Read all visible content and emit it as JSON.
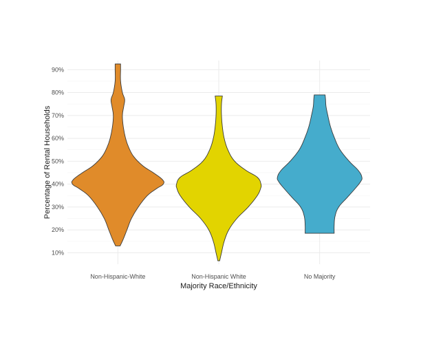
{
  "chart_data": {
    "type": "violin",
    "title": "",
    "xlabel": "Majority Race/Ethnicity",
    "ylabel": "Percentage of Rental Households",
    "ylim": [
      0.05,
      0.94
    ],
    "y_ticks": [
      0.1,
      0.2,
      0.3,
      0.4,
      0.5,
      0.6,
      0.7,
      0.8,
      0.9
    ],
    "y_tick_labels": [
      "10%",
      "20%",
      "30%",
      "40%",
      "50%",
      "60%",
      "70%",
      "80%",
      "90%"
    ],
    "grid": true,
    "legend": "none",
    "categories": [
      "Non-Hispanic-White",
      "Non-Hispanic White",
      "No Majority"
    ],
    "series": [
      {
        "category": "Non-Hispanic-White",
        "color": "#E08B2A",
        "min": 0.13,
        "max": 0.925,
        "density_profile": [
          [
            0.13,
            0.05
          ],
          [
            0.16,
            0.12
          ],
          [
            0.2,
            0.2
          ],
          [
            0.25,
            0.3
          ],
          [
            0.3,
            0.45
          ],
          [
            0.35,
            0.65
          ],
          [
            0.38,
            0.85
          ],
          [
            0.4,
            1.0
          ],
          [
            0.42,
            0.98
          ],
          [
            0.45,
            0.78
          ],
          [
            0.48,
            0.55
          ],
          [
            0.52,
            0.35
          ],
          [
            0.56,
            0.24
          ],
          [
            0.6,
            0.17
          ],
          [
            0.65,
            0.12
          ],
          [
            0.7,
            0.1
          ],
          [
            0.74,
            0.13
          ],
          [
            0.77,
            0.15
          ],
          [
            0.8,
            0.1
          ],
          [
            0.85,
            0.06
          ],
          [
            0.9,
            0.06
          ],
          [
            0.925,
            0.06
          ]
        ]
      },
      {
        "category": "Non-Hispanic White",
        "color": "#E2D400",
        "min": 0.065,
        "max": 0.785,
        "density_profile": [
          [
            0.065,
            0.02
          ],
          [
            0.1,
            0.06
          ],
          [
            0.15,
            0.12
          ],
          [
            0.2,
            0.22
          ],
          [
            0.25,
            0.4
          ],
          [
            0.3,
            0.65
          ],
          [
            0.35,
            0.85
          ],
          [
            0.38,
            0.92
          ],
          [
            0.4,
            0.93
          ],
          [
            0.43,
            0.85
          ],
          [
            0.46,
            0.6
          ],
          [
            0.5,
            0.35
          ],
          [
            0.55,
            0.2
          ],
          [
            0.6,
            0.12
          ],
          [
            0.65,
            0.08
          ],
          [
            0.7,
            0.06
          ],
          [
            0.75,
            0.06
          ],
          [
            0.785,
            0.08
          ]
        ]
      },
      {
        "category": "No Majority",
        "color": "#45ACCC",
        "min": 0.185,
        "max": 0.79,
        "density_profile": [
          [
            0.185,
            0.32
          ],
          [
            0.22,
            0.32
          ],
          [
            0.26,
            0.34
          ],
          [
            0.3,
            0.42
          ],
          [
            0.34,
            0.6
          ],
          [
            0.38,
            0.78
          ],
          [
            0.41,
            0.9
          ],
          [
            0.43,
            0.93
          ],
          [
            0.46,
            0.85
          ],
          [
            0.5,
            0.65
          ],
          [
            0.55,
            0.45
          ],
          [
            0.6,
            0.33
          ],
          [
            0.65,
            0.24
          ],
          [
            0.7,
            0.18
          ],
          [
            0.74,
            0.14
          ],
          [
            0.77,
            0.13
          ],
          [
            0.79,
            0.12
          ]
        ]
      }
    ]
  }
}
